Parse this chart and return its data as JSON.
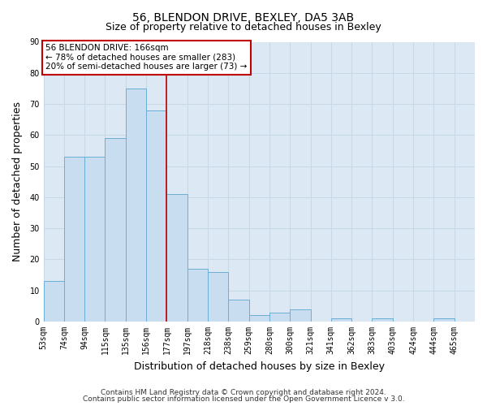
{
  "title": "56, BLENDON DRIVE, BEXLEY, DA5 3AB",
  "subtitle": "Size of property relative to detached houses in Bexley",
  "xlabel": "Distribution of detached houses by size in Bexley",
  "ylabel": "Number of detached properties",
  "footer_line1": "Contains HM Land Registry data © Crown copyright and database right 2024.",
  "footer_line2": "Contains public sector information licensed under the Open Government Licence v 3.0.",
  "bar_labels": [
    "53sqm",
    "74sqm",
    "94sqm",
    "115sqm",
    "135sqm",
    "156sqm",
    "177sqm",
    "197sqm",
    "218sqm",
    "238sqm",
    "259sqm",
    "280sqm",
    "300sqm",
    "321sqm",
    "341sqm",
    "362sqm",
    "383sqm",
    "403sqm",
    "424sqm",
    "444sqm",
    "465sqm"
  ],
  "bar_values": [
    13,
    53,
    53,
    59,
    75,
    68,
    41,
    17,
    16,
    7,
    2,
    3,
    4,
    0,
    1,
    0,
    1,
    0,
    0,
    1,
    0
  ],
  "bar_color": "#c9ddf0",
  "bar_edge_color": "#6baed6",
  "ylim": [
    0,
    90
  ],
  "yticks": [
    0,
    10,
    20,
    30,
    40,
    50,
    60,
    70,
    80,
    90
  ],
  "property_line_color": "#c00000",
  "annotation_text_line1": "56 BLENDON DRIVE: 166sqm",
  "annotation_text_line2": "← 78% of detached houses are smaller (283)",
  "annotation_text_line3": "20% of semi-detached houses are larger (73) →",
  "annotation_box_facecolor": "#ffffff",
  "annotation_box_edgecolor": "#c00000",
  "grid_color": "#c8d8e8",
  "plot_bg_color": "#dce9f5",
  "fig_bg_color": "#ffffff",
  "title_fontsize": 10,
  "subtitle_fontsize": 9,
  "axis_label_fontsize": 9,
  "tick_fontsize": 7,
  "annotation_fontsize": 7.5,
  "footer_fontsize": 6.5
}
